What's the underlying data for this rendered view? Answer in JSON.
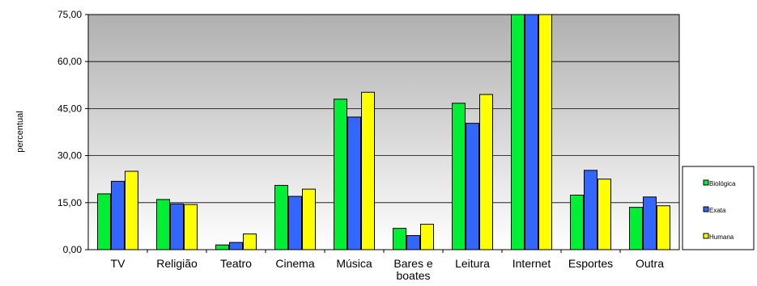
{
  "chart_data": {
    "type": "bar",
    "title": "",
    "xlabel": "",
    "ylabel": "percentual",
    "ylim": [
      0,
      75
    ],
    "yticks": [
      "0,00",
      "15,00",
      "30,00",
      "45,00",
      "60,00",
      "75,00"
    ],
    "grid": true,
    "legend_position": "right",
    "categories": [
      [
        "TV"
      ],
      [
        "Religião"
      ],
      [
        "Teatro"
      ],
      [
        "Cinema"
      ],
      [
        "Música"
      ],
      [
        "Bares e",
        "boates"
      ],
      [
        "Leitura"
      ],
      [
        "Internet"
      ],
      [
        "Esportes"
      ],
      [
        "Outra"
      ]
    ],
    "series": [
      {
        "name": "Biológica",
        "color": "#00ee33",
        "values": [
          17.8,
          16.0,
          1.5,
          20.5,
          48.0,
          6.8,
          46.7,
          80.0,
          17.4,
          13.5
        ]
      },
      {
        "name": "Exata",
        "color": "#3366ff",
        "values": [
          21.8,
          14.6,
          2.3,
          17.0,
          42.3,
          4.5,
          40.3,
          80.0,
          25.3,
          16.8
        ]
      },
      {
        "name": "Humana",
        "color": "#ffff00",
        "values": [
          25.0,
          14.4,
          5.0,
          19.3,
          50.2,
          8.1,
          49.5,
          80.0,
          22.5,
          14.0
        ]
      }
    ]
  }
}
